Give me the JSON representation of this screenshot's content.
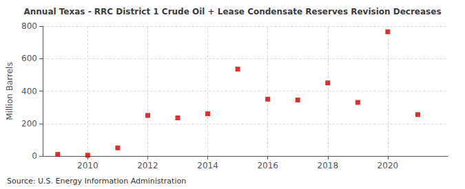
{
  "chart_data": {
    "type": "scatter",
    "title": "Annual Texas - RRC District 1 Crude Oil + Lease Condensate Reserves Revision Decreases",
    "ylabel": "Million Barrels",
    "annotation": "Source: U.S. Energy Information Administration",
    "x": [
      2009,
      2010,
      2011,
      2012,
      2013,
      2014,
      2015,
      2016,
      2017,
      2018,
      2019,
      2020,
      2021
    ],
    "values": [
      10,
      5,
      50,
      250,
      235,
      260,
      535,
      350,
      345,
      450,
      330,
      765,
      255
    ],
    "color": "#cc0000",
    "marker": "square",
    "xlim": [
      2008.5,
      2022.0
    ],
    "ylim": [
      0,
      800
    ],
    "xticks": [
      2010,
      2012,
      2014,
      2016,
      2018,
      2020
    ],
    "yticks": [
      0,
      200,
      400,
      600,
      800
    ],
    "grid": true
  }
}
